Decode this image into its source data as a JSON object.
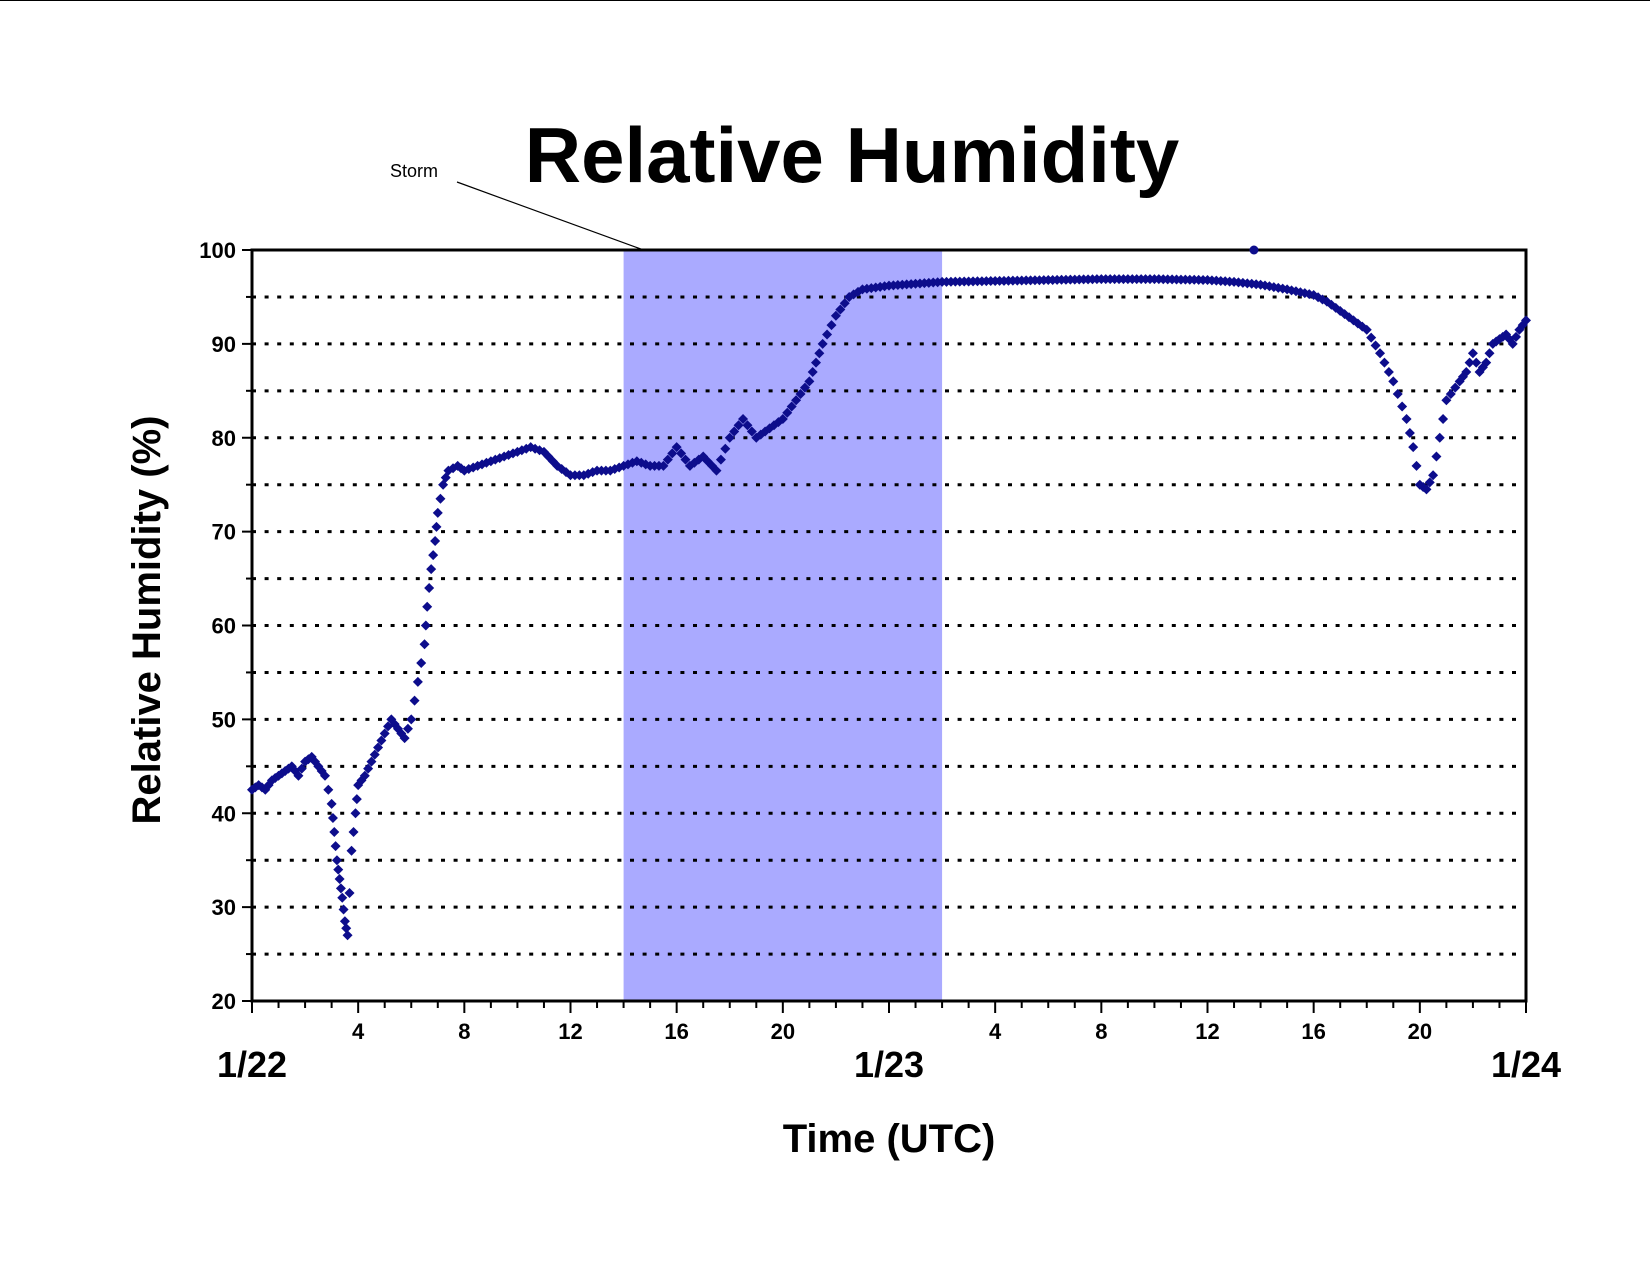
{
  "chart_data": {
    "type": "scatter",
    "title": "Relative Humidity",
    "xlabel": "Time (UTC)",
    "ylabel": "Relative Humidity (%)",
    "xlim_hours": [
      0,
      48
    ],
    "ylim": [
      20,
      100
    ],
    "y_ticks": [
      20,
      30,
      40,
      50,
      60,
      70,
      80,
      90,
      100
    ],
    "y_gridlines": [
      25,
      30,
      35,
      40,
      45,
      50,
      55,
      60,
      65,
      70,
      75,
      80,
      85,
      90,
      95
    ],
    "grid": "dotted horizontal",
    "x_tick_labels": [
      {
        "hour": 4,
        "label": "4"
      },
      {
        "hour": 8,
        "label": "8"
      },
      {
        "hour": 12,
        "label": "12"
      },
      {
        "hour": 16,
        "label": "16"
      },
      {
        "hour": 20,
        "label": "20"
      },
      {
        "hour": 28,
        "label": "4"
      },
      {
        "hour": 32,
        "label": "8"
      },
      {
        "hour": 36,
        "label": "12"
      },
      {
        "hour": 40,
        "label": "16"
      },
      {
        "hour": 44,
        "label": "20"
      }
    ],
    "date_labels": [
      {
        "hour": 0,
        "label": "1/22"
      },
      {
        "hour": 24,
        "label": "1/23"
      },
      {
        "hour": 48,
        "label": "1/24"
      }
    ],
    "shaded_region": {
      "label": "Storm",
      "x_start_hours": 14,
      "x_end_hours": 26,
      "color": "#aaaaff"
    },
    "marker_color": "#0d0d8c",
    "series": [
      {
        "points": [
          [
            0,
            42.5
          ],
          [
            0.25,
            43
          ],
          [
            0.5,
            42.5
          ],
          [
            0.75,
            43.5
          ],
          [
            1,
            44
          ],
          [
            1.25,
            44.5
          ],
          [
            1.5,
            45
          ],
          [
            1.75,
            44
          ],
          [
            2,
            45.5
          ],
          [
            2.25,
            46
          ],
          [
            2.5,
            45
          ],
          [
            2.75,
            44
          ],
          [
            3,
            41
          ],
          [
            3.1,
            38
          ],
          [
            3.2,
            35
          ],
          [
            3.3,
            33
          ],
          [
            3.4,
            31
          ],
          [
            3.5,
            28.5
          ],
          [
            3.6,
            27
          ],
          [
            3.75,
            36
          ],
          [
            3.9,
            40
          ],
          [
            4,
            43
          ],
          [
            4.25,
            44
          ],
          [
            4.5,
            45.5
          ],
          [
            4.75,
            47
          ],
          [
            5,
            48.5
          ],
          [
            5.25,
            50
          ],
          [
            5.5,
            49
          ],
          [
            5.75,
            48
          ],
          [
            6,
            50
          ],
          [
            6.25,
            54
          ],
          [
            6.5,
            58
          ],
          [
            6.6,
            62
          ],
          [
            6.75,
            66
          ],
          [
            6.9,
            69
          ],
          [
            7,
            72
          ],
          [
            7.2,
            75
          ],
          [
            7.4,
            76.5
          ],
          [
            7.75,
            77
          ],
          [
            8,
            76.5
          ],
          [
            8.5,
            77
          ],
          [
            9,
            77.5
          ],
          [
            9.5,
            78
          ],
          [
            10,
            78.5
          ],
          [
            10.5,
            79
          ],
          [
            11,
            78.5
          ],
          [
            11.5,
            77
          ],
          [
            12,
            76
          ],
          [
            12.5,
            76
          ],
          [
            13,
            76.5
          ],
          [
            13.5,
            76.5
          ],
          [
            14,
            77
          ],
          [
            14.5,
            77.5
          ],
          [
            15,
            77
          ],
          [
            15.5,
            77
          ],
          [
            16,
            79
          ],
          [
            16.5,
            77
          ],
          [
            17,
            78
          ],
          [
            17.5,
            76.5
          ],
          [
            18,
            80
          ],
          [
            18.5,
            82
          ],
          [
            19,
            80
          ],
          [
            19.5,
            81
          ],
          [
            20,
            82
          ],
          [
            20.5,
            84
          ],
          [
            21,
            86
          ],
          [
            21.25,
            88
          ],
          [
            21.5,
            90
          ],
          [
            22,
            93
          ],
          [
            22.5,
            95
          ],
          [
            23,
            95.8
          ],
          [
            24,
            96.2
          ],
          [
            25,
            96.4
          ],
          [
            26,
            96.6
          ],
          [
            28,
            96.7
          ],
          [
            30,
            96.8
          ],
          [
            32,
            96.9
          ],
          [
            34,
            96.9
          ],
          [
            36,
            96.8
          ],
          [
            37,
            96.6
          ],
          [
            38,
            96.3
          ],
          [
            39,
            95.8
          ],
          [
            40,
            95.2
          ],
          [
            40.5,
            94.5
          ],
          [
            41,
            93.5
          ],
          [
            41.5,
            92.5
          ],
          [
            42,
            91.5
          ],
          [
            42.5,
            89
          ],
          [
            43,
            86
          ],
          [
            43.5,
            82
          ],
          [
            43.75,
            79
          ],
          [
            44,
            75
          ],
          [
            44.25,
            74.5
          ],
          [
            44.5,
            76
          ],
          [
            44.75,
            80
          ],
          [
            45,
            84
          ],
          [
            45.5,
            86
          ],
          [
            45.75,
            87
          ],
          [
            46,
            89
          ],
          [
            46.25,
            87
          ],
          [
            46.5,
            88
          ],
          [
            46.75,
            90
          ],
          [
            47,
            90.5
          ],
          [
            47.25,
            91
          ],
          [
            47.5,
            90
          ],
          [
            47.75,
            91.5
          ],
          [
            48,
            92.5
          ],
          [
            37.75,
            100
          ]
        ]
      }
    ]
  }
}
